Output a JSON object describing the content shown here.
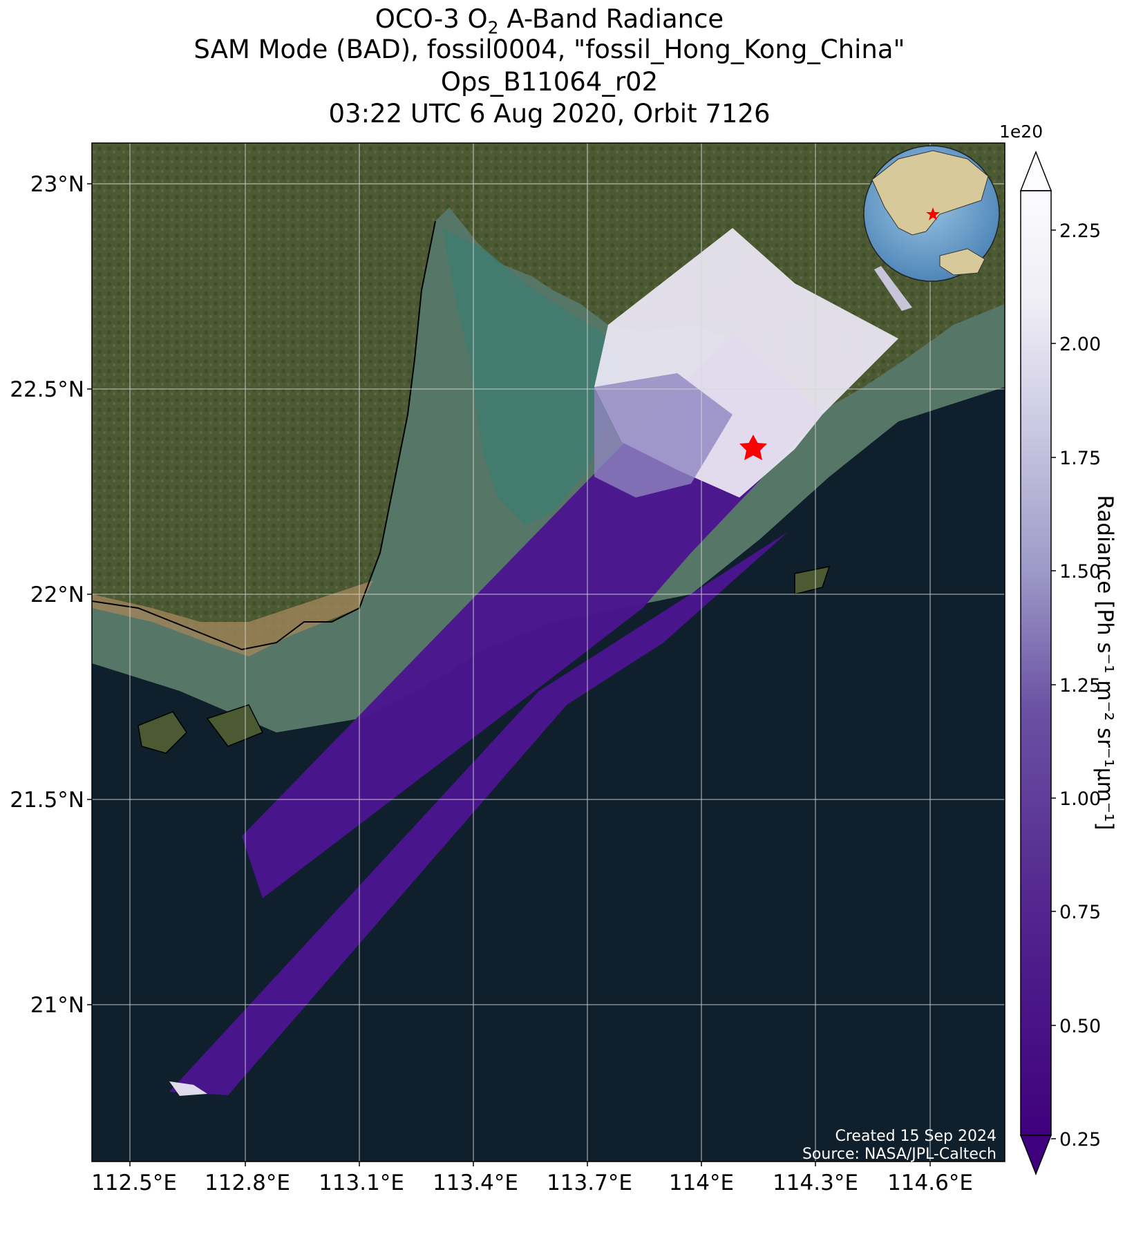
{
  "title": {
    "line1": "OCO-3 O",
    "line1_sub": "2",
    "line1_rest": " A-Band Radiance",
    "line2": "SAM Mode (BAD), fossil0004, \"fossil_Hong_Kong_China\"",
    "line3": "Ops_B11064_r02",
    "line4": "03:22 UTC 6 Aug 2020, Orbit 7126"
  },
  "map": {
    "lat_ticks": [
      "23°N",
      "22.5°N",
      "22°N",
      "21.5°N",
      "21°N"
    ],
    "lon_ticks": [
      "112.5°E",
      "112.8°E",
      "113.1°E",
      "113.4°E",
      "113.7°E",
      "114°E",
      "114.3°E",
      "114.6°E"
    ],
    "target_marker": "red-star",
    "inset_globe": "orthographic-globe-icon"
  },
  "colorbar": {
    "exponent": "1e20",
    "ticks": [
      "0.25",
      "0.50",
      "0.75",
      "1.00",
      "1.25",
      "1.50",
      "1.75",
      "2.00",
      "2.25"
    ],
    "label": "Radiance [Ph s⁻¹ m⁻² sr⁻¹μm⁻¹]",
    "colormap": "Purples_r",
    "extend": "both"
  },
  "footer": {
    "created": "Created 15 Sep 2024",
    "source": "Source: NASA/JPL-Caltech"
  },
  "colors": {
    "ocean": "#0f1f2b",
    "land": "#4f5a35",
    "sediment": "#a0855a",
    "low": "#3f007d",
    "high": "#fcfbfd",
    "star": "#ff0000"
  }
}
